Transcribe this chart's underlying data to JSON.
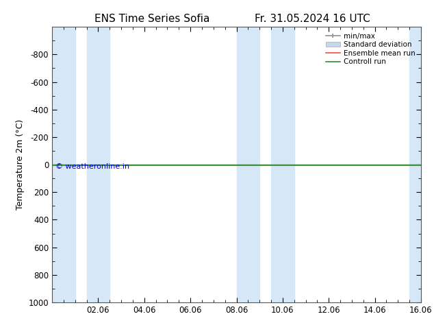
{
  "title_left": "ENS Time Series Sofia",
  "title_right": "Fr. 31.05.2024 16 UTC",
  "ylabel": "Temperature 2m (°C)",
  "watermark": "© weatheronline.in",
  "watermark_color": "#0000cc",
  "ylim_bottom": 1000,
  "ylim_top": -1000,
  "yticks": [
    -800,
    -600,
    -400,
    -200,
    0,
    200,
    400,
    600,
    800,
    1000
  ],
  "xtick_major_labels": [
    "02.06",
    "04.06",
    "06.06",
    "08.06",
    "10.06",
    "12.06",
    "14.06",
    "16.06"
  ],
  "xtick_major_positions": [
    2,
    4,
    6,
    8,
    10,
    12,
    14,
    16
  ],
  "xlim": [
    0,
    16
  ],
  "shaded_bands": [
    [
      0,
      1
    ],
    [
      1.5,
      2.5
    ],
    [
      8,
      9
    ],
    [
      9.5,
      10.5
    ],
    [
      15.5,
      16
    ]
  ],
  "shaded_color": "#d6e8f7",
  "control_run_y": 0,
  "control_run_color": "#2d8c2d",
  "ensemble_mean_color": "#ff4444",
  "std_dev_color": "#c5d8eb",
  "minmax_color": "#909090",
  "bg_color": "#ffffff",
  "legend_entries": [
    "min/max",
    "Standard deviation",
    "Ensemble mean run",
    "Controll run"
  ],
  "border_color": "#555555",
  "title_fontsize": 11,
  "label_fontsize": 9,
  "tick_fontsize": 8.5
}
